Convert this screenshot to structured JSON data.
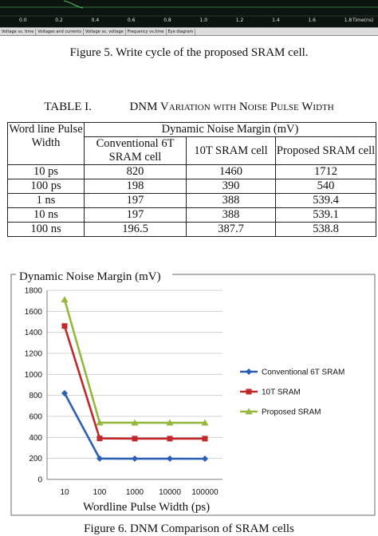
{
  "simulator": {
    "time_ticks": [
      "0.0",
      "0.2",
      "0.4",
      "0.6",
      "0.8",
      "1.0",
      "1.2",
      "1.4",
      "1.6",
      "1.8"
    ],
    "time_axis_label": "Time(ns)",
    "tabs": [
      "Voltage vs. time",
      "Voltages and currents",
      "Voltage vs. voltage",
      "Frequency vs.time",
      "Eye diagram"
    ]
  },
  "figure5_caption": "Figure 5.    Write cycle of the proposed SRAM cell.",
  "table": {
    "title_prefix": "TABLE I.",
    "title_text": "DNM Variation with Noise Pulse Width",
    "header_col1": "Word line Pulse Width",
    "header_group": "Dynamic Noise Margin (mV)",
    "header_cols": [
      "Conventional 6T SRAM cell",
      "10T SRAM cell",
      "Proposed SRAM cell"
    ],
    "rows": [
      {
        "width": "10 ps",
        "values": [
          "820",
          "1460",
          "1712"
        ]
      },
      {
        "width": "100 ps",
        "values": [
          "198",
          "390",
          "540"
        ]
      },
      {
        "width": "1 ns",
        "values": [
          "197",
          "388",
          "539.4"
        ]
      },
      {
        "width": "10 ns",
        "values": [
          "197",
          "388",
          "539.1"
        ]
      },
      {
        "width": "100 ns",
        "values": [
          "196.5",
          "387.7",
          "538.8"
        ]
      }
    ]
  },
  "chart_data": {
    "type": "line",
    "title": "Dynamic Noise Margin (mV)",
    "xlabel": "Wordline Pulse Width (ps)",
    "ylabel": "",
    "categories": [
      "10",
      "100",
      "1000",
      "10000",
      "100000"
    ],
    "ylim": [
      0,
      1800
    ],
    "yticks": [
      0,
      200,
      400,
      600,
      800,
      1000,
      1200,
      1400,
      1600,
      1800
    ],
    "grid": true,
    "legend_position": "right",
    "series": [
      {
        "name": "Conventional 6T SRAM",
        "values": [
          820,
          198,
          197,
          197,
          196.5
        ],
        "color": "#2b5fb5",
        "marker": "diamond"
      },
      {
        "name": "10T SRAM",
        "values": [
          1460,
          390,
          388,
          388,
          387.7
        ],
        "color": "#c0282a",
        "marker": "square"
      },
      {
        "name": "Proposed SRAM",
        "values": [
          1712,
          540,
          539.4,
          539.1,
          538.8
        ],
        "color": "#93b83c",
        "marker": "triangle"
      }
    ]
  },
  "figure6_caption": "Figure 6.    DNM Comparison of SRAM cells"
}
